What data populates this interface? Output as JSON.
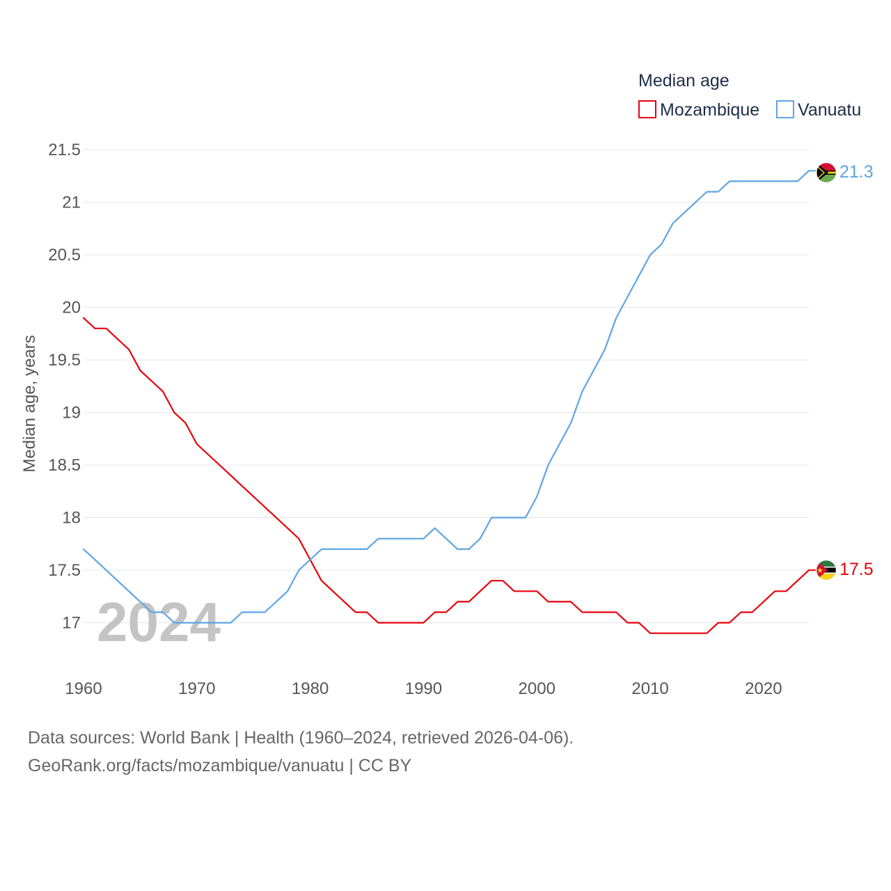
{
  "chart_data": {
    "type": "line",
    "legend_title": "Median age",
    "legend_position": "top-right",
    "ylabel": "Median age, years",
    "xlabel": "",
    "xlim": [
      1960,
      2024
    ],
    "ylim": [
      16.6,
      21.6
    ],
    "x_ticks": [
      1960,
      1970,
      1980,
      1990,
      2000,
      2010,
      2020
    ],
    "y_ticks": [
      17,
      17.5,
      18,
      18.5,
      19,
      19.5,
      20,
      20.5,
      21,
      21.5
    ],
    "y_tick_labels": [
      "17",
      "17.5",
      "18",
      "18.5",
      "19",
      "19.5",
      "20",
      "20.5",
      "21",
      "21.5"
    ],
    "watermark_year": "2024",
    "grid": true,
    "x": [
      1960,
      1961,
      1962,
      1963,
      1964,
      1965,
      1966,
      1967,
      1968,
      1969,
      1970,
      1971,
      1972,
      1973,
      1974,
      1975,
      1976,
      1977,
      1978,
      1979,
      1980,
      1981,
      1982,
      1983,
      1984,
      1985,
      1986,
      1987,
      1988,
      1989,
      1990,
      1991,
      1992,
      1993,
      1994,
      1995,
      1996,
      1997,
      1998,
      1999,
      2000,
      2001,
      2002,
      2003,
      2004,
      2005,
      2006,
      2007,
      2008,
      2009,
      2010,
      2011,
      2012,
      2013,
      2014,
      2015,
      2016,
      2017,
      2018,
      2019,
      2020,
      2021,
      2022,
      2023,
      2024
    ],
    "series": [
      {
        "name": "Mozambique",
        "color": "#e8000b",
        "end_label": "17.5",
        "flag": "mozambique-flag",
        "values": [
          19.9,
          19.8,
          19.8,
          19.7,
          19.6,
          19.4,
          19.3,
          19.2,
          19.0,
          18.9,
          18.7,
          18.6,
          18.5,
          18.4,
          18.3,
          18.2,
          18.1,
          18.0,
          17.9,
          17.8,
          17.6,
          17.4,
          17.3,
          17.2,
          17.1,
          17.1,
          17.0,
          17.0,
          17.0,
          17.0,
          17.0,
          17.1,
          17.1,
          17.2,
          17.2,
          17.3,
          17.4,
          17.4,
          17.3,
          17.3,
          17.3,
          17.2,
          17.2,
          17.2,
          17.1,
          17.1,
          17.1,
          17.1,
          17.0,
          17.0,
          16.9,
          16.9,
          16.9,
          16.9,
          16.9,
          16.9,
          17.0,
          17.0,
          17.1,
          17.1,
          17.2,
          17.3,
          17.3,
          17.4,
          17.5
        ]
      },
      {
        "name": "Vanuatu",
        "color": "#5da5e3",
        "end_label": "21.3",
        "flag": "vanuatu-flag",
        "values": [
          17.7,
          17.6,
          17.5,
          17.4,
          17.3,
          17.2,
          17.1,
          17.1,
          17.0,
          17.0,
          17.0,
          17.0,
          17.0,
          17.0,
          17.1,
          17.1,
          17.1,
          17.2,
          17.3,
          17.5,
          17.6,
          17.7,
          17.7,
          17.7,
          17.7,
          17.7,
          17.8,
          17.8,
          17.8,
          17.8,
          17.8,
          17.9,
          17.8,
          17.7,
          17.7,
          17.8,
          18.0,
          18.0,
          18.0,
          18.0,
          18.2,
          18.5,
          18.7,
          18.9,
          19.2,
          19.4,
          19.6,
          19.9,
          20.1,
          20.3,
          20.5,
          20.6,
          20.8,
          20.9,
          21.0,
          21.1,
          21.1,
          21.2,
          21.2,
          21.2,
          21.2,
          21.2,
          21.2,
          21.2,
          21.3
        ]
      }
    ]
  },
  "footer": {
    "line1": "Data sources: World Bank | Health (1960–2024, retrieved 2026-04-06).",
    "line2": "GeoRank.org/facts/mozambique/vanuatu | CC BY"
  }
}
